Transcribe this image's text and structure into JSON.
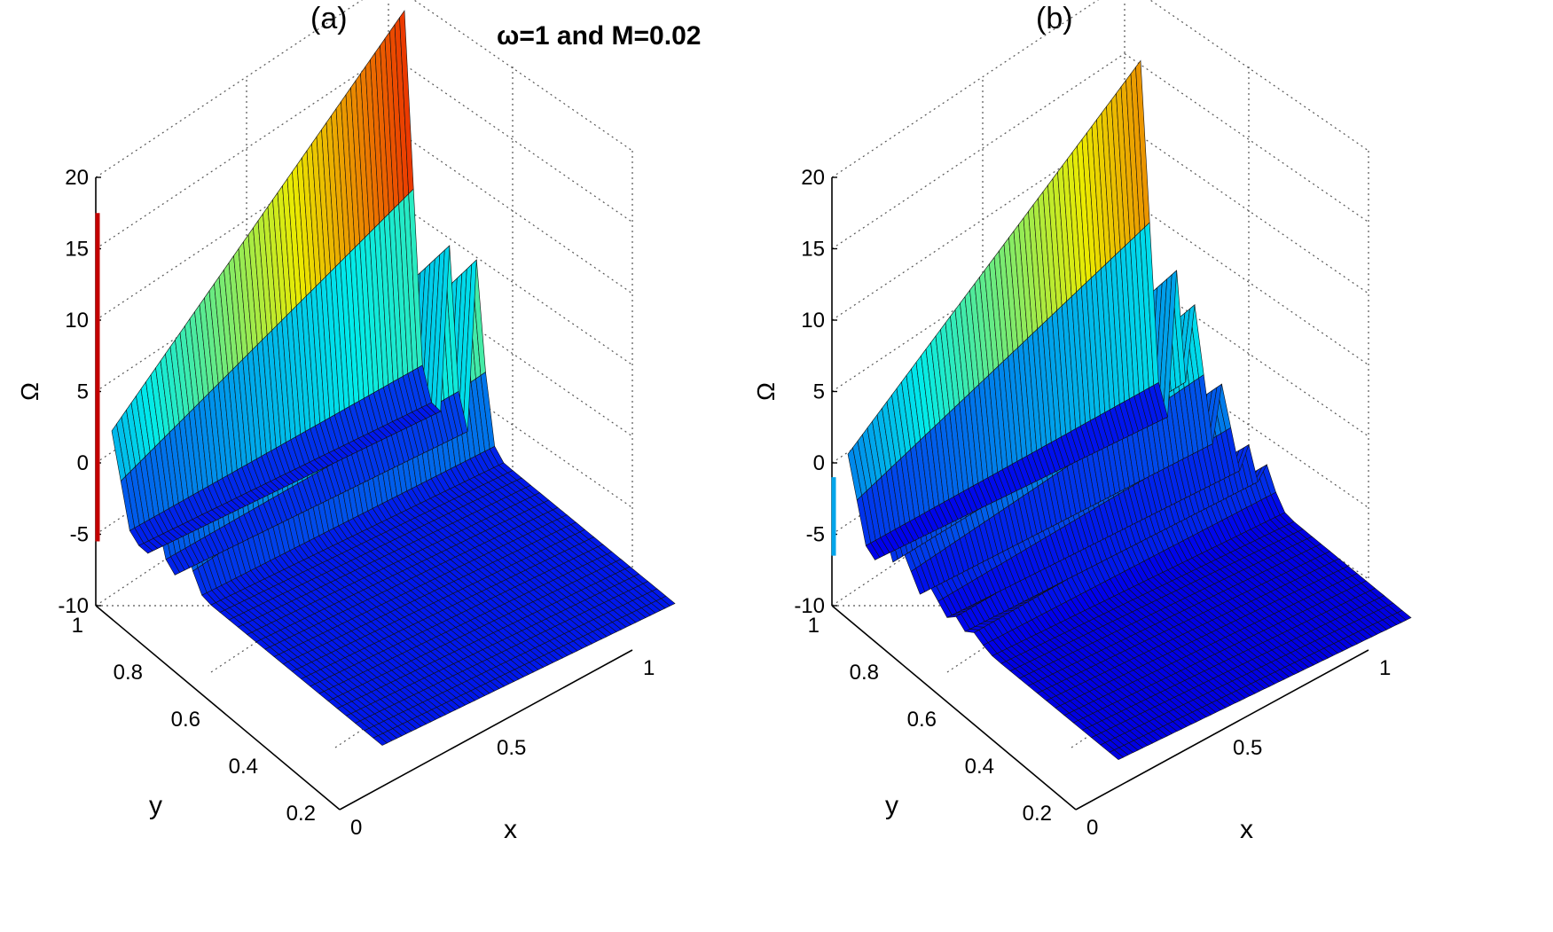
{
  "figure": {
    "title": "ω=1 and M=0.02"
  },
  "chart_data": [
    {
      "type": "surface",
      "panel_label": "(a)",
      "xlabel": "x",
      "ylabel": "y",
      "zlabel": "Ω",
      "xlim": [
        0,
        1
      ],
      "ylim": [
        0.2,
        1
      ],
      "zlim": [
        -10,
        20
      ],
      "x_ticks": [
        "0",
        "0.5",
        "1"
      ],
      "y_ticks": [
        "0.2",
        "0.4",
        "0.6",
        "0.8",
        "1"
      ],
      "z_ticks": [
        "-10",
        "-5",
        "0",
        "5",
        "10",
        "15",
        "20"
      ],
      "grid": true,
      "colormap": "jet",
      "ridges": [
        {
          "x": 0.0,
          "peak": 20.5
        },
        {
          "x": 0.14,
          "peak": 12.5
        },
        {
          "x": 0.26,
          "peak": 7.5
        }
      ],
      "spike": {
        "x": 0.0,
        "y": 1.0,
        "peak": 17.5
      },
      "trough_min": -6,
      "plateau_level": -5.5
    },
    {
      "type": "surface",
      "panel_label": "(b)",
      "xlabel": "x",
      "ylabel": "y",
      "zlabel": "Ω",
      "xlim": [
        0,
        1
      ],
      "ylim": [
        0.2,
        1
      ],
      "zlim": [
        -10,
        20
      ],
      "x_ticks": [
        "0",
        "0.5",
        "1"
      ],
      "y_ticks": [
        "0.2",
        "0.4",
        "0.6",
        "0.8",
        "1"
      ],
      "z_ticks": [
        "-10",
        "-5",
        "0",
        "5",
        "10",
        "15",
        "20"
      ],
      "grid": true,
      "colormap": "jet",
      "ridges": [
        {
          "x": 0.0,
          "peak": 17.0
        },
        {
          "x": 0.12,
          "peak": 5.5
        },
        {
          "x": 0.2,
          "peak": 3.0
        },
        {
          "x": 0.3,
          "peak": -1.0
        },
        {
          "x": 0.38,
          "peak": -3.0
        },
        {
          "x": 0.46,
          "peak": -4.0
        }
      ],
      "spike": {
        "x": 0.0,
        "y": 1.0,
        "peak": -1.0
      },
      "trough_min": -9,
      "plateau_level": -6.5
    }
  ]
}
